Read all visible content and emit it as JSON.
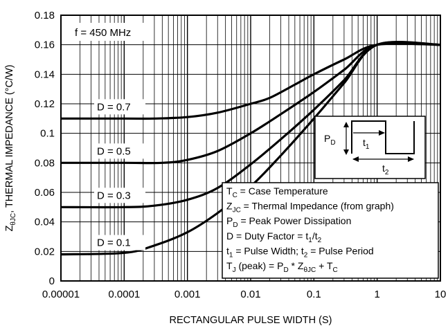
{
  "chart_data": {
    "type": "line",
    "title": "",
    "xlabel": "RECTANGULAR PULSE WIDTH (S)",
    "ylabel": "ZθJC, THERMAL IMPEDANCE (°C/W)",
    "ylabel_parts": {
      "main": "Z",
      "sub": "θJC",
      "rest": ", THERMAL IMPEDANCE (°C/W)"
    },
    "x_scale": "log",
    "xlim": [
      1e-05,
      10
    ],
    "ylim": [
      0,
      0.18
    ],
    "grid": true,
    "x_ticks": [
      "0.00001",
      "0.0001",
      "0.001",
      "0.01",
      "0.1",
      "1",
      "10"
    ],
    "y_ticks": [
      "0",
      "0.02",
      "0.04",
      "0.06",
      "0.08",
      "0.1",
      "0.12",
      "0.14",
      "0.16",
      "0.18"
    ],
    "condition_label": "f = 450 MHz",
    "series": [
      {
        "name": "D = 0.7",
        "x": [
          1e-05,
          0.0001,
          0.0003,
          0.001,
          0.003,
          0.01,
          0.02,
          0.05,
          0.1,
          0.3,
          1,
          10
        ],
        "y": [
          0.11,
          0.11,
          0.11,
          0.111,
          0.114,
          0.12,
          0.124,
          0.133,
          0.14,
          0.15,
          0.16,
          0.16
        ]
      },
      {
        "name": "D = 0.5",
        "x": [
          1e-05,
          0.0001,
          0.0004,
          0.001,
          0.003,
          0.01,
          0.03,
          0.1,
          0.3,
          1,
          10
        ],
        "y": [
          0.08,
          0.08,
          0.08,
          0.082,
          0.088,
          0.1,
          0.113,
          0.128,
          0.143,
          0.16,
          0.16
        ]
      },
      {
        "name": "D = 0.3",
        "x": [
          1e-05,
          0.0001,
          0.0003,
          0.001,
          0.003,
          0.01,
          0.03,
          0.1,
          0.3,
          1,
          10
        ],
        "y": [
          0.05,
          0.05,
          0.051,
          0.055,
          0.063,
          0.079,
          0.096,
          0.116,
          0.136,
          0.16,
          0.16
        ]
      },
      {
        "name": "D = 0.1",
        "x": [
          1e-05,
          0.0001,
          0.0003,
          0.001,
          0.003,
          0.01,
          0.03,
          0.1,
          0.3,
          1,
          10
        ],
        "y": [
          0.018,
          0.019,
          0.024,
          0.033,
          0.046,
          0.064,
          0.085,
          0.11,
          0.134,
          0.16,
          0.16
        ]
      }
    ],
    "legend_box": {
      "lines": [
        {
          "parts": [
            {
              "t": "T"
            },
            {
              "t": "C",
              "sub": true
            },
            {
              "t": " = Case Temperature"
            }
          ]
        },
        {
          "parts": [
            {
              "t": "Z"
            },
            {
              "t": "JC",
              "sub": true
            },
            {
              "t": " = Thermal Impedance (from graph)"
            }
          ]
        },
        {
          "parts": [
            {
              "t": "P"
            },
            {
              "t": "D",
              "sub": true
            },
            {
              "t": " = Peak Power Dissipation"
            }
          ]
        },
        {
          "parts": [
            {
              "t": "D = Duty Factor = t"
            },
            {
              "t": "1",
              "sub": true
            },
            {
              "t": "/t"
            },
            {
              "t": "2",
              "sub": true
            }
          ]
        },
        {
          "parts": [
            {
              "t": "t"
            },
            {
              "t": "1",
              "sub": true
            },
            {
              "t": " = Pulse Width; t"
            },
            {
              "t": "2",
              "sub": true
            },
            {
              "t": " = Pulse Period"
            }
          ]
        },
        {
          "parts": [
            {
              "t": "T"
            },
            {
              "t": "J",
              "sub": true
            },
            {
              "t": " (peak) = P"
            },
            {
              "t": "D",
              "sub": true
            },
            {
              "t": " * Z"
            },
            {
              "t": "θJC",
              "sub": true
            },
            {
              "t": " + T"
            },
            {
              "t": "C",
              "sub": true
            }
          ]
        }
      ]
    },
    "inset": {
      "pd": {
        "main": "P",
        "sub": "D"
      },
      "t1": {
        "main": "t",
        "sub": "1"
      },
      "t2": {
        "main": "t",
        "sub": "2"
      }
    }
  }
}
